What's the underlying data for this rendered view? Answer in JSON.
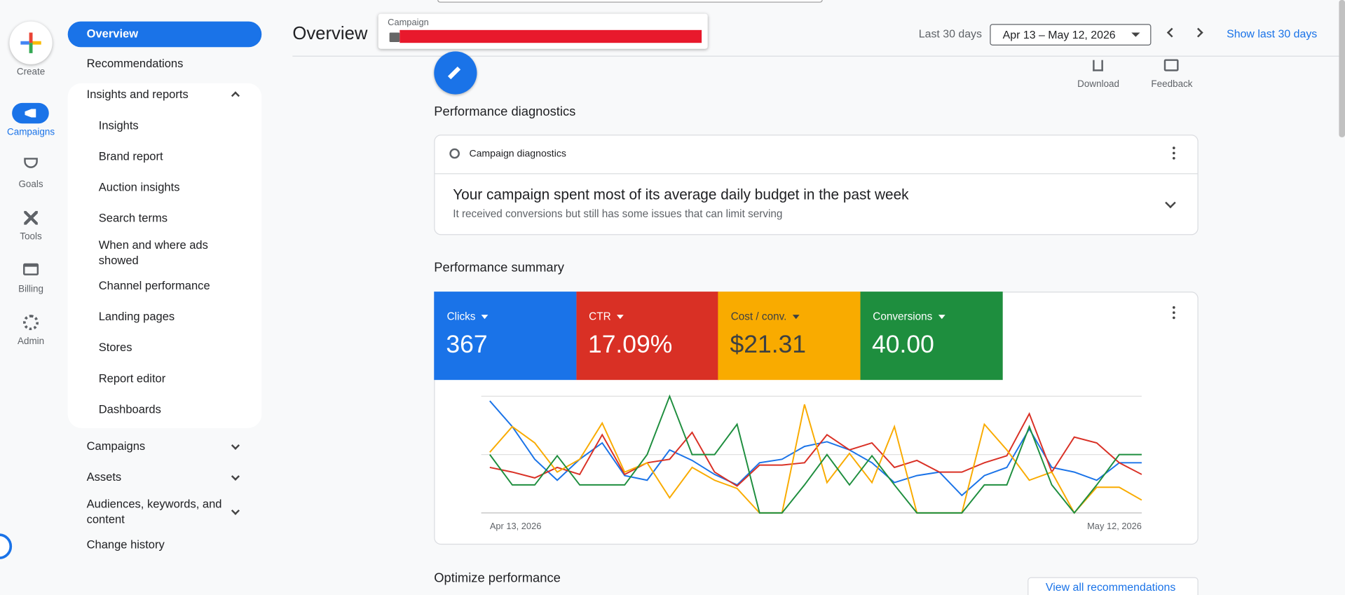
{
  "rail": [
    "Create",
    "Campaigns",
    "Goals",
    "Tools",
    "Billing",
    "Admin"
  ],
  "nav": {
    "top": [
      "Overview",
      "Recommendations",
      "Insights and reports"
    ],
    "insights": [
      "Insights",
      "Brand report",
      "Auction insights",
      "Search terms",
      "When and where ads showed",
      "Channel performance",
      "Landing pages",
      "Stores",
      "Report editor",
      "Dashboards"
    ],
    "more": [
      "Campaigns",
      "Assets",
      "Audiences, keywords, and content",
      "Change history"
    ]
  },
  "header": {
    "title": "Overview",
    "campaign_label": "Campaign",
    "date_label": "Last 30 days",
    "date_range": "Apr 13 – May 12, 2026",
    "show_last": "Show last 30 days"
  },
  "toolbar": [
    "Download",
    "Feedback"
  ],
  "diagnostics": {
    "heading": "Performance diagnostics",
    "card_title": "Campaign diagnostics",
    "message": "Your campaign spent most of its average daily budget in the past week",
    "detail": "It received conversions but still has some issues that can limit serving"
  },
  "summary": {
    "heading": "Performance summary",
    "totals": [
      "367",
      "17.09%",
      "$21.31",
      "40.00"
    ]
  },
  "chart_data": {
    "type": "line",
    "categories": [
      "Apr 13, 2026",
      null,
      null,
      null,
      null,
      null,
      null,
      null,
      null,
      null,
      null,
      null,
      null,
      null,
      null,
      null,
      null,
      null,
      null,
      null,
      null,
      null,
      null,
      null,
      null,
      null,
      null,
      null,
      null,
      "May 12, 2026"
    ],
    "ylim": [
      0,
      100
    ],
    "grid": true,
    "series": [
      {
        "name": "Clicks",
        "color": "#1a73e8",
        "values": [
          96,
          74,
          46,
          28,
          46,
          60,
          32,
          28,
          54,
          45,
          33,
          24,
          43,
          46,
          57,
          61,
          54,
          43,
          26,
          32,
          35,
          15,
          32,
          39,
          72,
          39,
          35,
          28,
          43,
          43
        ]
      },
      {
        "name": "CTR",
        "color": "#d93025",
        "values": [
          39,
          35,
          30,
          39,
          33,
          67,
          33,
          43,
          46,
          69,
          35,
          23,
          41,
          41,
          43,
          67,
          54,
          60,
          39,
          45,
          35,
          35,
          43,
          49,
          85,
          35,
          65,
          60,
          43,
          33
        ]
      },
      {
        "name": "Cost / conv.",
        "color": "#f9ab00",
        "values": [
          52,
          74,
          60,
          35,
          46,
          77,
          35,
          43,
          13,
          39,
          28,
          21,
          0,
          0,
          93,
          26,
          51,
          26,
          74,
          0,
          0,
          0,
          76,
          54,
          28,
          35,
          0,
          22,
          22,
          11
        ]
      },
      {
        "name": "Conversions",
        "color": "#1e8e3e",
        "values": [
          50,
          24,
          24,
          49,
          24,
          24,
          24,
          50,
          100,
          50,
          50,
          76,
          0,
          0,
          24,
          50,
          24,
          49,
          24,
          0,
          0,
          0,
          24,
          24,
          74,
          24,
          0,
          24,
          50,
          50
        ]
      }
    ]
  },
  "optimize": {
    "heading": "Optimize performance",
    "link": "View all recommendations"
  }
}
